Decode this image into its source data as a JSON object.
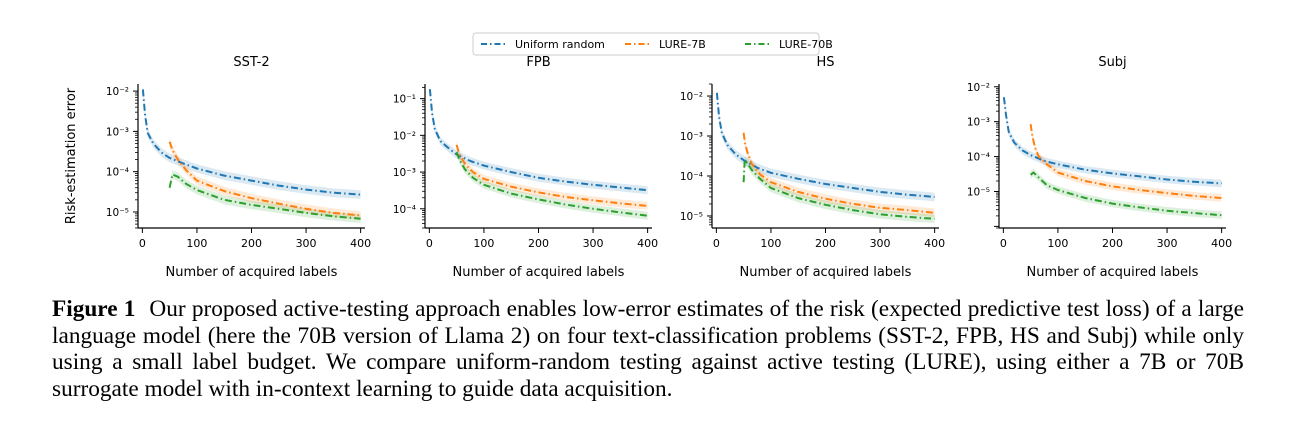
{
  "legend": {
    "entries": [
      {
        "name": "Uniform random",
        "color": "#1f77b4"
      },
      {
        "name": "LURE-7B",
        "color": "#ff7f0e"
      },
      {
        "name": "LURE-70B",
        "color": "#2ca02c"
      }
    ],
    "placement": "top-center"
  },
  "caption": {
    "label": "Figure 1",
    "text": "Our proposed active-testing approach enables low-error estimates of the risk (expected predictive test loss) of a large language model (here the 70B version of Llama 2) on four text-classification problems (SST-2, FPB, HS and Subj) while only using a small label budget. We compare uniform-random testing against active testing (LURE), using either a 7B or 70B surrogate model with in-context learning to guide data acquisition."
  },
  "chart_data": [
    {
      "type": "line",
      "title": "SST-2",
      "xlabel": "Number of acquired labels",
      "ylabel": "Risk-estimation error",
      "xlim": [
        -8,
        408
      ],
      "xticks": [
        0,
        100,
        200,
        300,
        400
      ],
      "ylim": [
        4e-06,
        0.015
      ],
      "yscale": "log",
      "yticks": [
        {
          "value": 0.01,
          "label": "10⁻²"
        },
        {
          "value": 0.001,
          "label": "10⁻³"
        },
        {
          "value": 0.0001,
          "label": "10⁻⁴"
        },
        {
          "value": 1e-05,
          "label": "10⁻⁵"
        }
      ],
      "series": [
        {
          "name": "Uniform random",
          "color": "#1f77b4",
          "x": [
            1,
            5,
            10,
            20,
            35,
            50,
            75,
            100,
            150,
            200,
            250,
            300,
            350,
            400
          ],
          "y": [
            0.011,
            0.0025,
            0.0009,
            0.0005,
            0.0003,
            0.00022,
            0.00016,
            0.00012,
            8e-05,
            6e-05,
            4.5e-05,
            3.6e-05,
            3e-05,
            2.7e-05
          ]
        },
        {
          "name": "LURE-7B",
          "color": "#ff7f0e",
          "x": [
            50,
            55,
            65,
            80,
            100,
            150,
            200,
            250,
            300,
            350,
            400
          ],
          "y": [
            0.00055,
            0.00035,
            0.0002,
            0.00011,
            6e-05,
            3.3e-05,
            2.2e-05,
            1.6e-05,
            1.2e-05,
            9.5e-06,
            8.2e-06
          ]
        },
        {
          "name": "LURE-70B",
          "color": "#2ca02c",
          "x": [
            50,
            55,
            65,
            80,
            100,
            150,
            200,
            250,
            300,
            350,
            400
          ],
          "y": [
            4e-05,
            8.5e-05,
            7.5e-05,
            5e-05,
            3.5e-05,
            2e-05,
            1.5e-05,
            1.2e-05,
            9.5e-06,
            7.8e-06,
            6.8e-06
          ]
        }
      ]
    },
    {
      "type": "line",
      "title": "FPB",
      "xlabel": "Number of acquired labels",
      "ylabel": "",
      "xlim": [
        -8,
        408
      ],
      "xticks": [
        0,
        100,
        200,
        300,
        400
      ],
      "ylim": [
        3e-05,
        0.25
      ],
      "yscale": "log",
      "yticks": [
        {
          "value": 0.1,
          "label": "10⁻¹"
        },
        {
          "value": 0.01,
          "label": "10⁻²"
        },
        {
          "value": 0.001,
          "label": "10⁻³"
        },
        {
          "value": 0.0001,
          "label": "10⁻⁴"
        }
      ],
      "series": [
        {
          "name": "Uniform random",
          "color": "#1f77b4",
          "x": [
            1,
            5,
            10,
            20,
            35,
            50,
            75,
            100,
            150,
            200,
            250,
            300,
            350,
            400
          ],
          "y": [
            0.18,
            0.04,
            0.015,
            0.007,
            0.0045,
            0.003,
            0.002,
            0.0015,
            0.001,
            0.0007,
            0.00055,
            0.00045,
            0.00038,
            0.00032
          ]
        },
        {
          "name": "LURE-7B",
          "color": "#ff7f0e",
          "x": [
            50,
            55,
            65,
            80,
            100,
            150,
            200,
            250,
            300,
            350,
            400
          ],
          "y": [
            0.0055,
            0.003,
            0.0017,
            0.001,
            0.00065,
            0.0004,
            0.00028,
            0.00021,
            0.00017,
            0.00014,
            0.00012
          ]
        },
        {
          "name": "LURE-70B",
          "color": "#2ca02c",
          "x": [
            50,
            55,
            65,
            80,
            100,
            150,
            200,
            250,
            300,
            350,
            400
          ],
          "y": [
            0.0035,
            0.0022,
            0.0012,
            0.0007,
            0.00045,
            0.00026,
            0.00018,
            0.00013,
            0.0001,
            8e-05,
            6.5e-05
          ]
        }
      ]
    },
    {
      "type": "line",
      "title": "HS",
      "xlabel": "Number of acquired labels",
      "ylabel": "",
      "xlim": [
        -8,
        408
      ],
      "xticks": [
        0,
        100,
        200,
        300,
        400
      ],
      "ylim": [
        5e-06,
        0.02
      ],
      "yscale": "log",
      "yticks": [
        {
          "value": 0.01,
          "label": "10⁻²"
        },
        {
          "value": 0.001,
          "label": "10⁻³"
        },
        {
          "value": 0.0001,
          "label": "10⁻⁴"
        },
        {
          "value": 1e-05,
          "label": "10⁻⁵"
        }
      ],
      "series": [
        {
          "name": "Uniform random",
          "color": "#1f77b4",
          "x": [
            1,
            5,
            10,
            20,
            35,
            50,
            75,
            100,
            150,
            200,
            250,
            300,
            350,
            400
          ],
          "y": [
            0.012,
            0.003,
            0.0012,
            0.0006,
            0.00035,
            0.00025,
            0.00016,
            0.00012,
            8.5e-05,
            6.3e-05,
            5e-05,
            4e-05,
            3.4e-05,
            3e-05
          ]
        },
        {
          "name": "LURE-7B",
          "color": "#ff7f0e",
          "x": [
            50,
            53,
            58,
            65,
            80,
            100,
            150,
            200,
            250,
            300,
            350,
            400
          ],
          "y": [
            0.0012,
            0.0006,
            0.00035,
            0.0002,
            0.00011,
            7e-05,
            4e-05,
            2.7e-05,
            2e-05,
            1.6e-05,
            1.4e-05,
            1.2e-05
          ]
        },
        {
          "name": "LURE-70B",
          "color": "#2ca02c",
          "x": [
            50,
            52,
            58,
            65,
            80,
            100,
            150,
            200,
            250,
            300,
            350,
            400
          ],
          "y": [
            7e-05,
            0.00025,
            0.0002,
            0.00014,
            8.5e-05,
            5e-05,
            2.8e-05,
            1.9e-05,
            1.4e-05,
            1.1e-05,
            9.5e-06,
            8.5e-06
          ]
        }
      ]
    },
    {
      "type": "line",
      "title": "Subj",
      "xlabel": "Number of acquired labels",
      "ylabel": "",
      "xlim": [
        -8,
        408
      ],
      "xticks": [
        0,
        100,
        200,
        300,
        400
      ],
      "ylim": [
        9e-07,
        0.012
      ],
      "yscale": "log",
      "yticks": [
        {
          "value": 0.01,
          "label": "10⁻²"
        },
        {
          "value": 0.001,
          "label": "10⁻³"
        },
        {
          "value": 0.0001,
          "label": "10⁻⁴"
        },
        {
          "value": 1e-05,
          "label": "10⁻⁵"
        }
      ],
      "series": [
        {
          "name": "Uniform random",
          "color": "#1f77b4",
          "x": [
            1,
            5,
            10,
            20,
            35,
            50,
            75,
            100,
            150,
            200,
            250,
            300,
            350,
            400
          ],
          "y": [
            0.005,
            0.0015,
            0.0005,
            0.00025,
            0.00015,
            0.00011,
            7.5e-05,
            6e-05,
            4.2e-05,
            3.3e-05,
            2.7e-05,
            2.2e-05,
            1.9e-05,
            1.7e-05
          ]
        },
        {
          "name": "LURE-7B",
          "color": "#ff7f0e",
          "x": [
            50,
            53,
            58,
            65,
            80,
            100,
            150,
            200,
            250,
            300,
            350,
            400
          ],
          "y": [
            0.00085,
            0.0004,
            0.00018,
            0.0001,
            6e-05,
            3.5e-05,
            2e-05,
            1.4e-05,
            1.1e-05,
            9e-06,
            7.5e-06,
            6.5e-06
          ]
        },
        {
          "name": "LURE-70B",
          "color": "#2ca02c",
          "x": [
            50,
            55,
            65,
            80,
            100,
            150,
            200,
            250,
            300,
            350,
            400
          ],
          "y": [
            3e-05,
            3.5e-05,
            2.5e-05,
            1.5e-05,
            1.1e-05,
            6.5e-06,
            4.5e-06,
            3.5e-06,
            2.8e-06,
            2.4e-06,
            2.1e-06
          ]
        }
      ]
    }
  ]
}
